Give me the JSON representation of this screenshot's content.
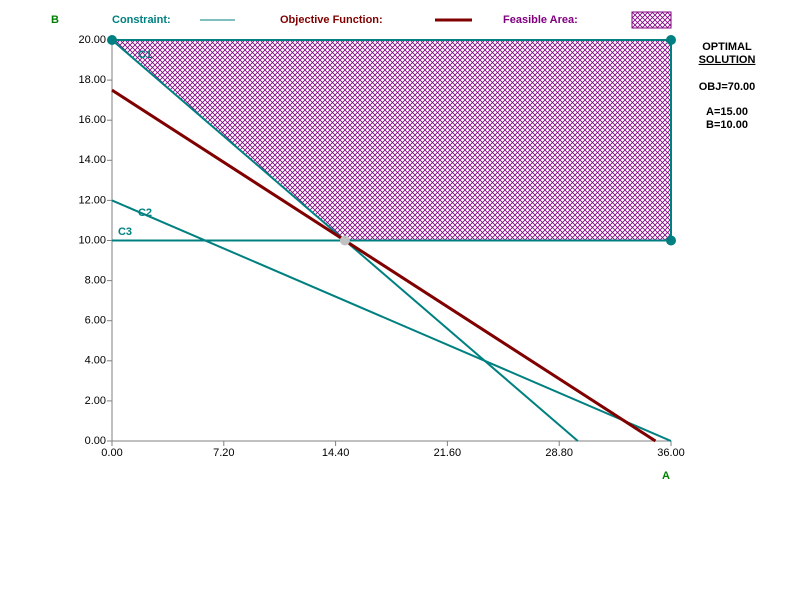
{
  "chart_data": {
    "type": "line",
    "y_axis_label": "B",
    "x_axis_label": "A",
    "legend": {
      "constraint": "Constraint:",
      "objective": "Objective Function:",
      "feasible": "Feasible Area:"
    },
    "xlim": [
      0,
      36
    ],
    "ylim": [
      0,
      20
    ],
    "xticks": [
      {
        "value": 0,
        "label": "0.00"
      },
      {
        "value": 7.2,
        "label": "7.20"
      },
      {
        "value": 14.4,
        "label": "14.40"
      },
      {
        "value": 21.6,
        "label": "21.60"
      },
      {
        "value": 28.8,
        "label": "28.80"
      },
      {
        "value": 36,
        "label": "36.00"
      }
    ],
    "yticks": [
      {
        "value": 0,
        "label": "0.00"
      },
      {
        "value": 2,
        "label": "2.00"
      },
      {
        "value": 4,
        "label": "4.00"
      },
      {
        "value": 6,
        "label": "6.00"
      },
      {
        "value": 8,
        "label": "8.00"
      },
      {
        "value": 10,
        "label": "10.00"
      },
      {
        "value": 12,
        "label": "12.00"
      },
      {
        "value": 14,
        "label": "14.00"
      },
      {
        "value": 16,
        "label": "16.00"
      },
      {
        "value": 18,
        "label": "18.00"
      },
      {
        "value": 20,
        "label": "20.00"
      }
    ],
    "feasible_area": {
      "color": "#800080",
      "x": [
        0,
        36,
        36,
        15
      ],
      "values": [
        20,
        20,
        10,
        10
      ]
    },
    "series": [
      {
        "name": "C1",
        "color": "#008080",
        "x": [
          0,
          30
        ],
        "values": [
          20,
          0
        ]
      },
      {
        "name": "C2",
        "color": "#008080",
        "x": [
          0,
          36
        ],
        "values": [
          12,
          0
        ]
      },
      {
        "name": "C3",
        "color": "#008080",
        "x": [
          0,
          36
        ],
        "values": [
          10,
          10
        ]
      }
    ],
    "objective": {
      "color": "#800000",
      "x": [
        0,
        35
      ],
      "values": [
        17.5,
        0
      ]
    },
    "vertices": {
      "color": "#008080",
      "x": [
        0,
        36,
        36
      ],
      "values": [
        20,
        20,
        10
      ]
    },
    "optimum": {
      "color": "#c0c0c0",
      "x": 15,
      "y": 10
    },
    "solution": {
      "title": "OPTIMAL",
      "subtitle": "SOLUTION",
      "objective": "OBJ=70.00",
      "a": "A=15.00",
      "b": "B=10.00"
    }
  }
}
